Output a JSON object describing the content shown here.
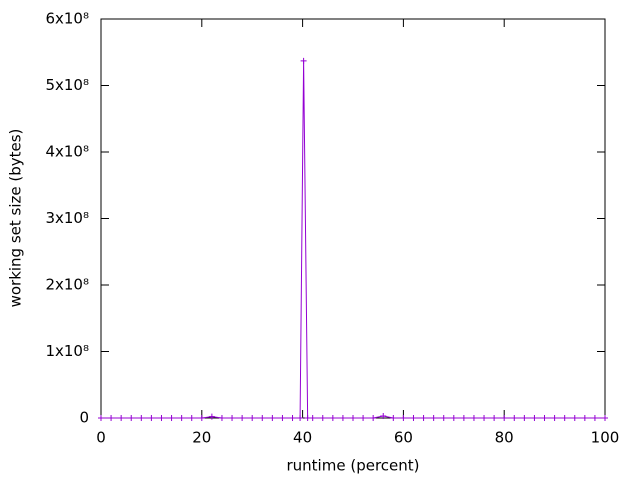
{
  "chart_data": {
    "type": "line",
    "x_label": "runtime (percent)",
    "y_label": "working set size (bytes)",
    "x": [
      0,
      2,
      4,
      6,
      8,
      10,
      12,
      14,
      16,
      18,
      20,
      22,
      24,
      26,
      28,
      30,
      32,
      34,
      36,
      38,
      39.5,
      40.2,
      41,
      42,
      44,
      46,
      48,
      50,
      52,
      54,
      56,
      58,
      60,
      62,
      64,
      66,
      68,
      70,
      72,
      74,
      76,
      78,
      80,
      82,
      84,
      86,
      88,
      90,
      92,
      94,
      96,
      98,
      100
    ],
    "series": [
      {
        "color": "#9400d3",
        "values": [
          0,
          0,
          0,
          0,
          0,
          0,
          0,
          0,
          0,
          0,
          0,
          2000000,
          0,
          0,
          0,
          0,
          0,
          0,
          0,
          0,
          0,
          537000000,
          0,
          0,
          0,
          0,
          0,
          0,
          0,
          0,
          3000000,
          0,
          0,
          0,
          0,
          0,
          0,
          0,
          0,
          0,
          0,
          0,
          0,
          0,
          0,
          0,
          0,
          0,
          0,
          0,
          0,
          0,
          0
        ]
      }
    ],
    "xlim": [
      0,
      100
    ],
    "xticks": [
      0,
      20,
      40,
      60,
      80,
      100
    ],
    "ylim": [
      0,
      600000000
    ],
    "yticks": [
      0,
      {
        "value": 100000000,
        "label": "1x10⁸"
      },
      {
        "value": 200000000,
        "label": "2x10⁸"
      },
      {
        "value": 300000000,
        "label": "3x10⁸"
      },
      {
        "value": 400000000,
        "label": "4x10⁸"
      },
      {
        "value": 500000000,
        "label": "5x10⁸"
      },
      {
        "value": 600000000,
        "label": "6x10⁸"
      }
    ]
  }
}
